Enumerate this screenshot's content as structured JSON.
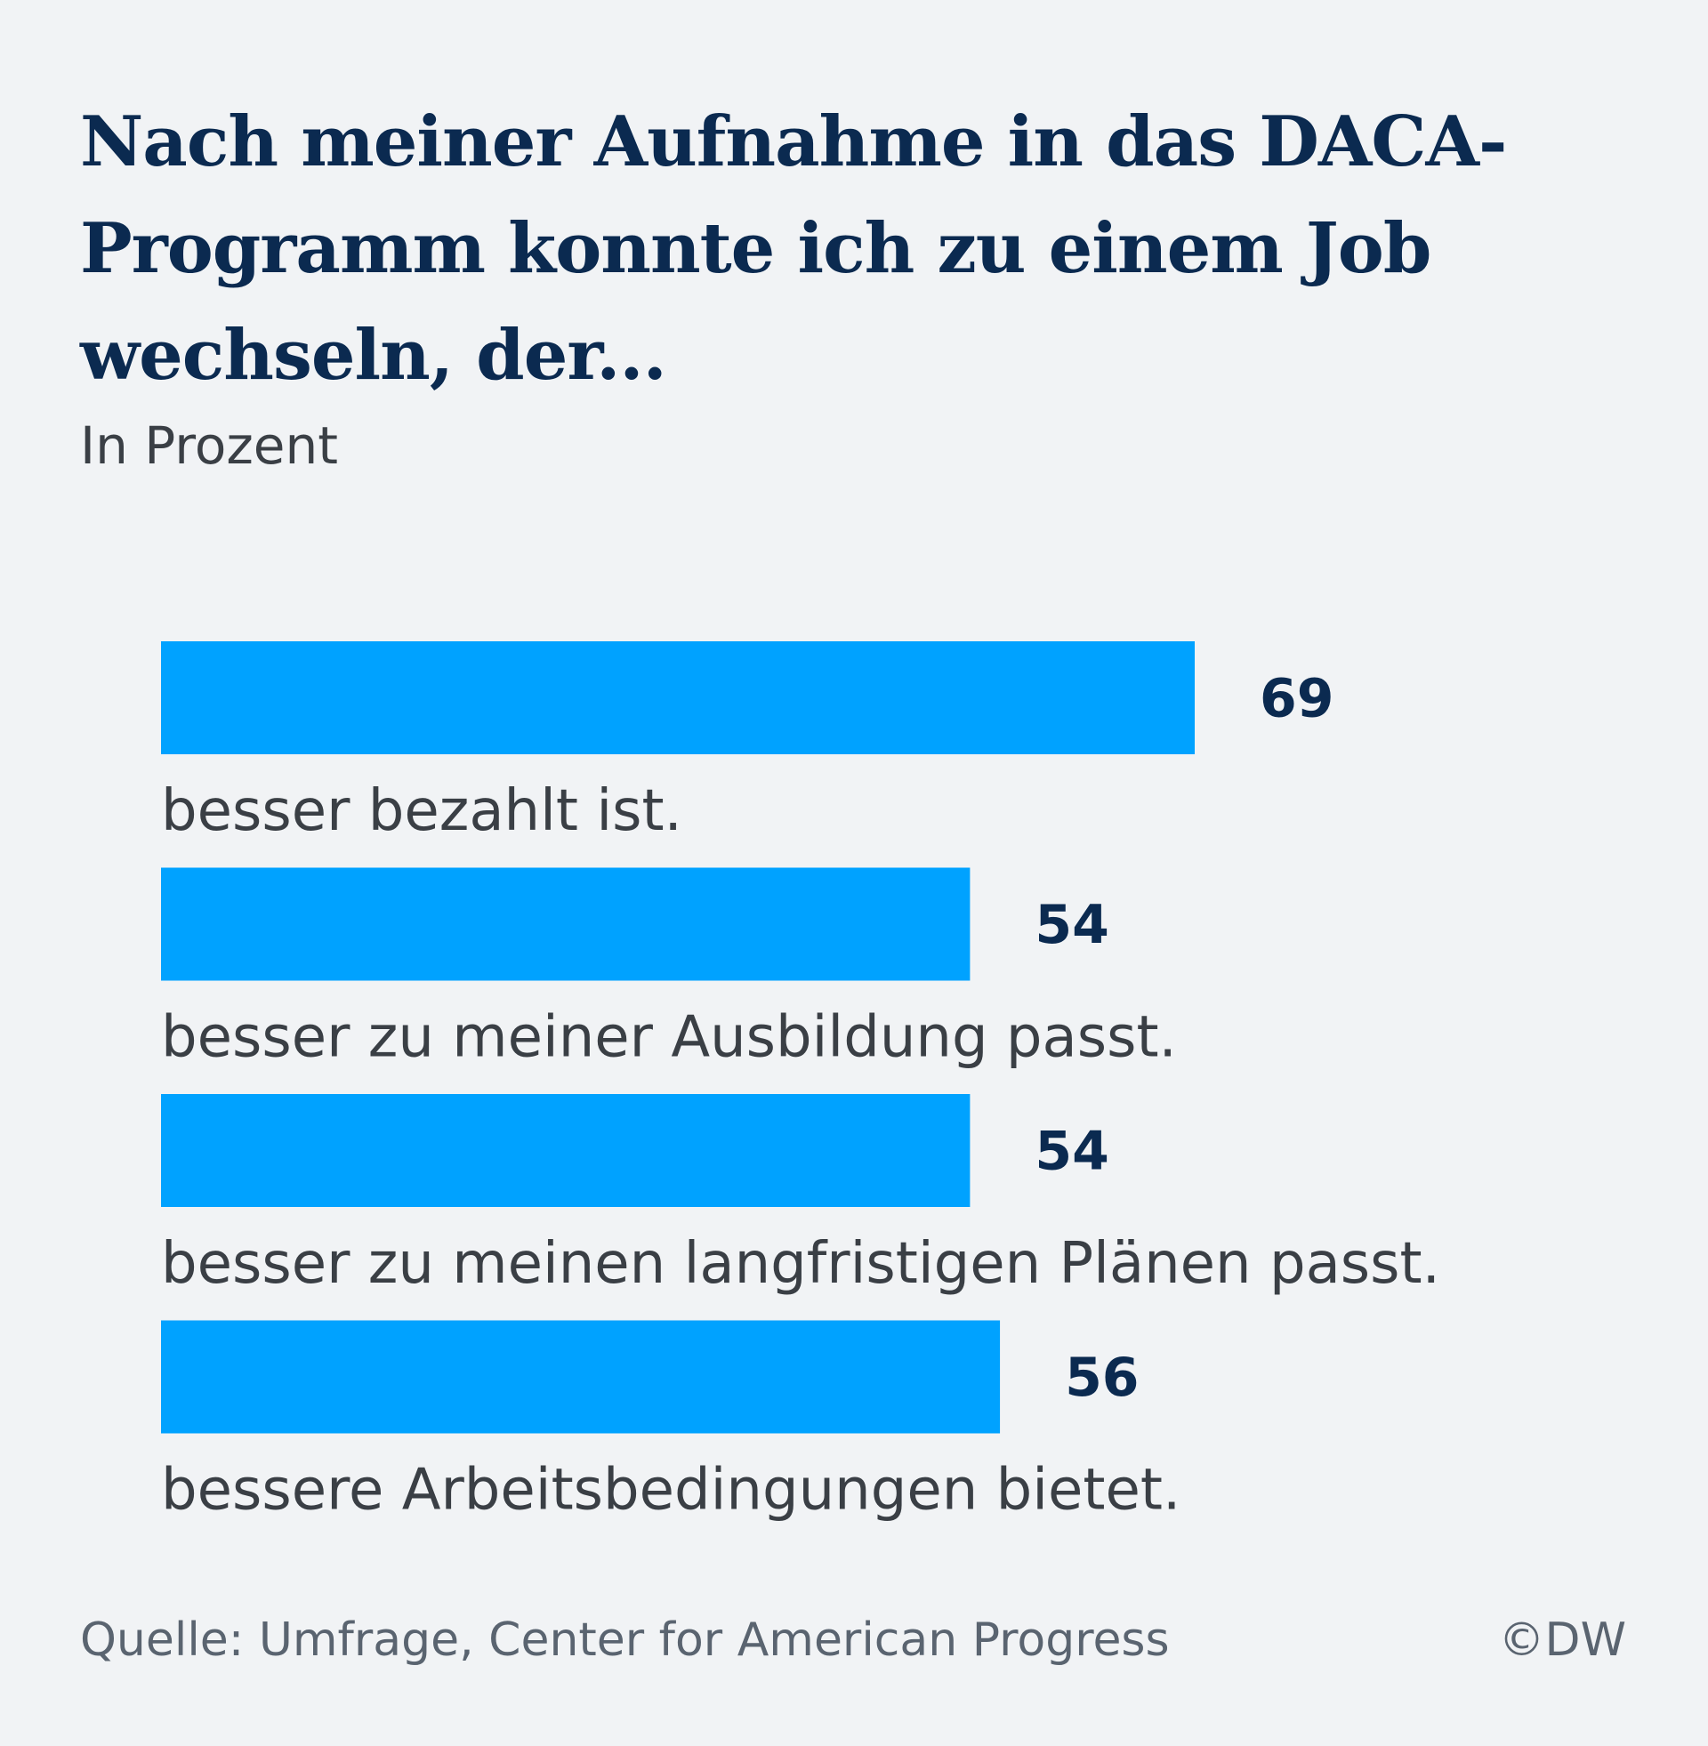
{
  "title": "Nach meiner Aufnahme in das DACA-Programm konnte ich zu einem Job wechseln, der...",
  "subtitle": "In Prozent",
  "footer": {
    "source": "Quelle: Umfrage, Center for American Progress",
    "credit": "©DW"
  },
  "colors": {
    "bar": "#00a2ff",
    "title": "#0b2a50",
    "value": "#0b2a50",
    "label": "#3a3f45",
    "background": "#f1f3f5"
  },
  "chart_data": {
    "type": "bar",
    "orientation": "horizontal",
    "categories": [
      "besser bezahlt ist.",
      "besser zu meiner Ausbildung passt.",
      "besser zu meinen langfristigen Plänen passt.",
      "bessere Arbeitsbedingungen bietet."
    ],
    "values": [
      69,
      54,
      54,
      56
    ],
    "value_labels": [
      "69",
      "54",
      "54",
      "56"
    ],
    "title": "Nach meiner Aufnahme in das DACA-Programm konnte ich zu einem Job wechseln, der...",
    "subtitle": "In Prozent",
    "xlim": [
      0,
      100
    ],
    "grid": false,
    "legend": "none"
  }
}
